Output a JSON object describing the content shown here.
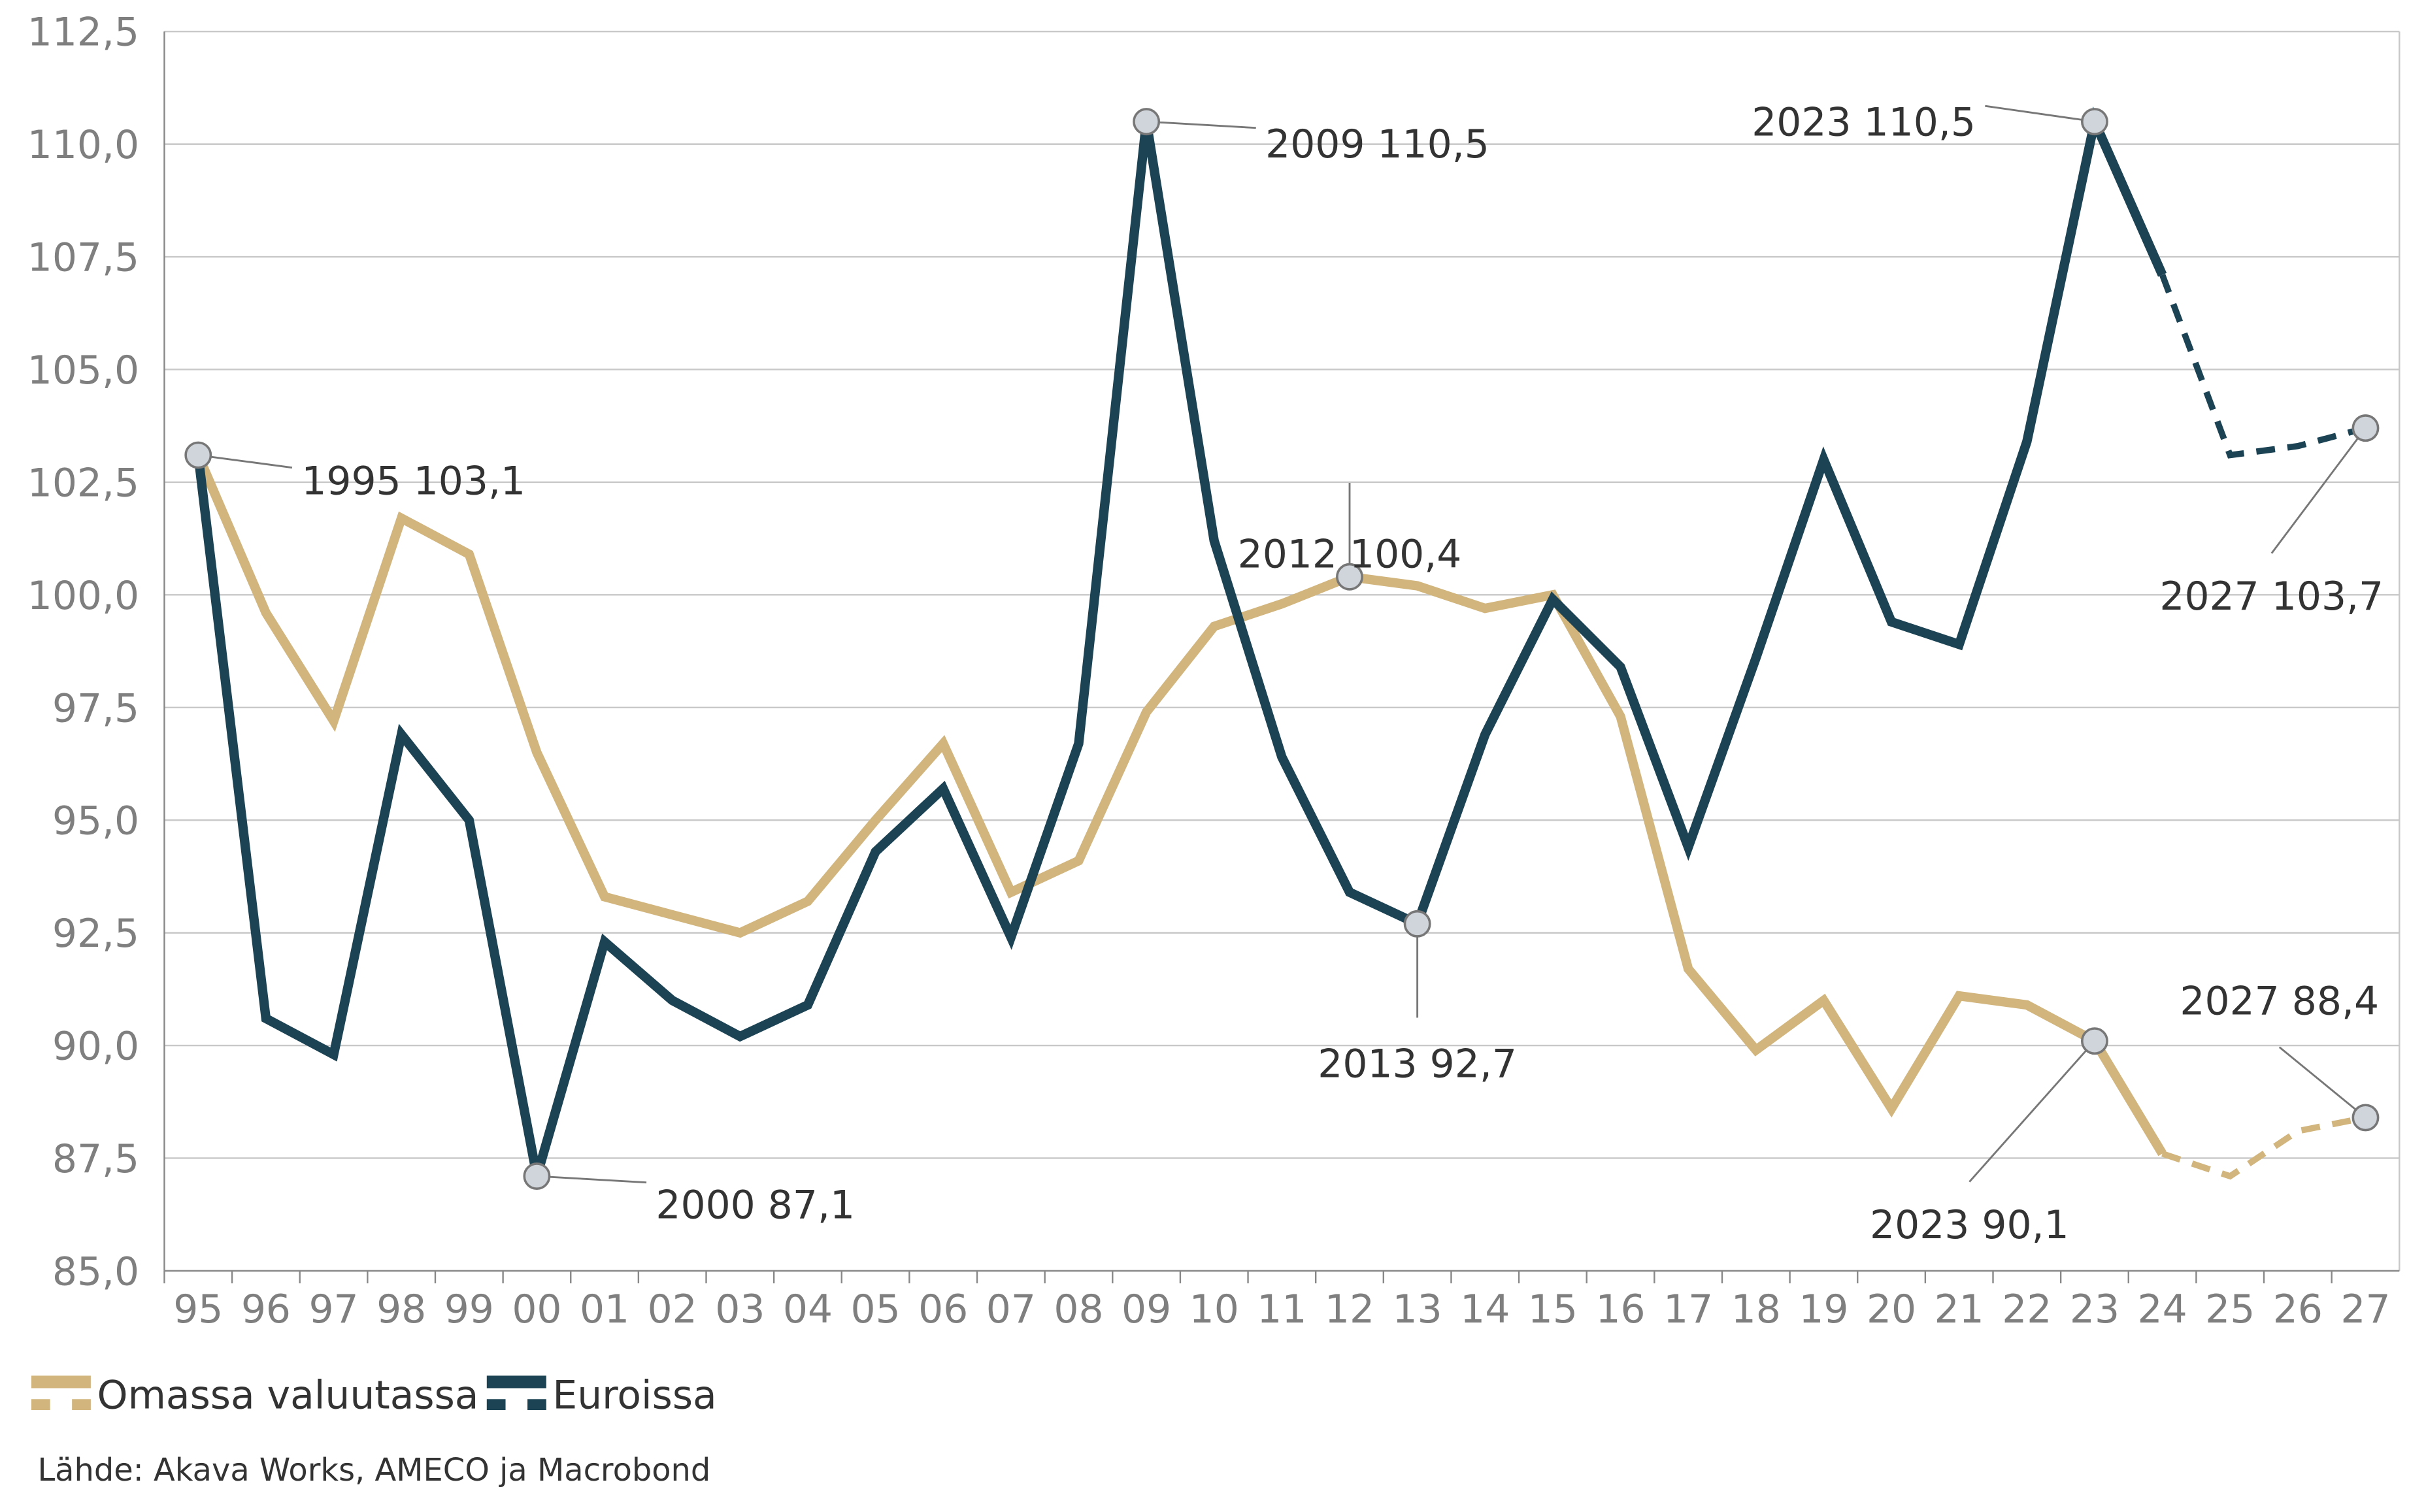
{
  "chart_data": {
    "type": "line",
    "title": "",
    "xlabel": "",
    "ylabel": "",
    "ylim": [
      85.0,
      112.5
    ],
    "yticks": [
      "85,0",
      "87,5",
      "90,0",
      "92,5",
      "95,0",
      "97,5",
      "100,0",
      "102,5",
      "105,0",
      "107,5",
      "110,0",
      "112,5"
    ],
    "ytick_values": [
      85,
      87.5,
      90,
      92.5,
      95,
      97.5,
      100,
      102.5,
      105,
      107.5,
      110,
      112.5
    ],
    "x": [
      "95",
      "96",
      "97",
      "98",
      "99",
      "00",
      "01",
      "02",
      "03",
      "04",
      "05",
      "06",
      "07",
      "08",
      "09",
      "10",
      "11",
      "12",
      "13",
      "14",
      "15",
      "16",
      "17",
      "18",
      "19",
      "20",
      "21",
      "22",
      "23",
      "24",
      "25",
      "26",
      "27"
    ],
    "grid": "horizontal",
    "legend_placement": "bottom-left",
    "forecast_from": "24",
    "series": [
      {
        "name": "Omassa valuutassa",
        "color": "#d1b57d",
        "values": [
          103.1,
          99.6,
          97.2,
          101.7,
          100.9,
          96.5,
          93.3,
          92.9,
          92.5,
          93.2,
          95.0,
          96.7,
          93.4,
          94.1,
          97.4,
          99.3,
          99.8,
          100.4,
          100.2,
          99.7,
          100.0,
          97.3,
          91.7,
          89.9,
          91.0,
          88.6,
          91.1,
          90.9,
          90.1,
          87.6,
          87.1,
          88.1,
          88.4
        ]
      },
      {
        "name": "Euroissa",
        "color": "#1c4354",
        "values": [
          103.1,
          90.6,
          89.8,
          96.9,
          95.0,
          87.1,
          92.3,
          91.0,
          90.2,
          90.9,
          94.3,
          95.7,
          92.4,
          96.7,
          110.5,
          101.2,
          96.4,
          93.4,
          92.7,
          96.9,
          99.9,
          98.4,
          94.4,
          98.6,
          103.0,
          99.4,
          98.9,
          103.4,
          110.5,
          107.1,
          103.1,
          103.3,
          103.7
        ]
      }
    ],
    "annotations": [
      {
        "series": 1,
        "x": "95",
        "text": "1995 103,1"
      },
      {
        "series": 1,
        "x": "00",
        "text": "2000 87,1"
      },
      {
        "series": 1,
        "x": "09",
        "text": "2009 110,5"
      },
      {
        "series": 0,
        "x": "12",
        "text": "2012 100,4"
      },
      {
        "series": 1,
        "x": "13",
        "text": "2013 92,7"
      },
      {
        "series": 1,
        "x": "23",
        "text": "2023 110,5"
      },
      {
        "series": 0,
        "x": "23",
        "text": "2023 90,1"
      },
      {
        "series": 1,
        "x": "27",
        "text": "2027 103,7"
      },
      {
        "series": 0,
        "x": "27",
        "text": "2027 88,4"
      }
    ],
    "source": "Lähde: Akava Works, AMECO ja Macrobond"
  }
}
